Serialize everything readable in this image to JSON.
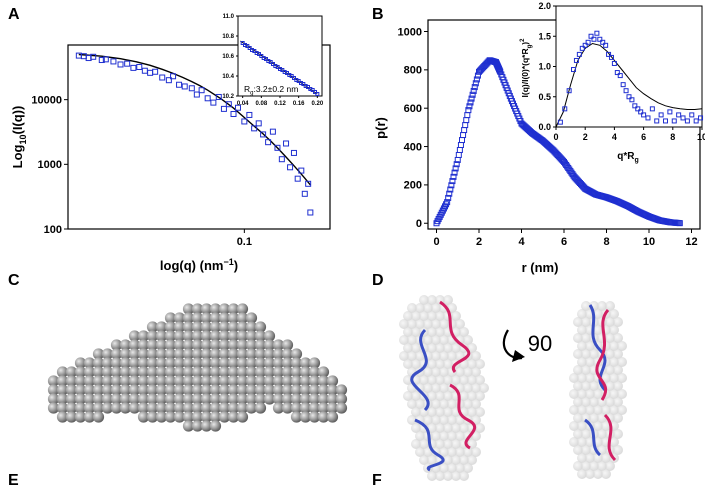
{
  "panel_labels": {
    "a": "A",
    "b": "B",
    "c": "C",
    "d": "D",
    "e": "E",
    "f": "F"
  },
  "panel_d": {
    "rotation_label": "90"
  },
  "colors": {
    "marker": "#1f2fd0",
    "fit": "#000000",
    "sphere": "#8c8c8c",
    "model_blue": "#3a4fc4",
    "model_red": "#d21f63",
    "envelope": "#d9d9d9"
  },
  "chart_data": [
    {
      "type": "scatter",
      "panel": "A",
      "xlabel": "log(q) (nm",
      "xlabel_sup": "−1",
      "xlabel_tail": ")",
      "ylabel": "Log",
      "ylabel_sub": "10",
      "ylabel_tail": "(I(q))",
      "xscale": "log",
      "yscale": "log",
      "xlim": [
        0.018,
        0.23
      ],
      "ylim": [
        100,
        70000
      ],
      "x_ticks": [
        {
          "v": 0.1,
          "label": "0.1"
        }
      ],
      "y_ticks": [
        {
          "v": 100,
          "label": "100"
        },
        {
          "v": 1000,
          "label": "1000"
        },
        {
          "v": 10000,
          "label": "10000"
        }
      ],
      "x": [
        0.02,
        0.021,
        0.022,
        0.023,
        0.025,
        0.026,
        0.028,
        0.03,
        0.032,
        0.034,
        0.036,
        0.038,
        0.04,
        0.042,
        0.045,
        0.048,
        0.05,
        0.053,
        0.056,
        0.06,
        0.063,
        0.066,
        0.07,
        0.074,
        0.078,
        0.082,
        0.086,
        0.09,
        0.094,
        0.1,
        0.105,
        0.11,
        0.115,
        0.12,
        0.126,
        0.132,
        0.138,
        0.144,
        0.15,
        0.156,
        0.162,
        0.168,
        0.174,
        0.18,
        0.186,
        0.19
      ],
      "y": [
        48000,
        47000,
        44000,
        46000,
        41000,
        42000,
        39000,
        35000,
        36000,
        31000,
        32000,
        28000,
        26000,
        27000,
        22000,
        20000,
        23000,
        17000,
        16000,
        15000,
        12000,
        14000,
        10500,
        9000,
        11000,
        7200,
        8500,
        6000,
        7500,
        4600,
        5800,
        3600,
        4300,
        2900,
        2200,
        3200,
        1800,
        1200,
        2100,
        900,
        1500,
        600,
        800,
        350,
        500,
        180
      ],
      "fit_x": [
        0.02,
        0.025,
        0.03,
        0.035,
        0.04,
        0.045,
        0.05,
        0.055,
        0.06,
        0.065,
        0.07,
        0.08,
        0.09,
        0.1,
        0.11,
        0.12,
        0.13,
        0.14,
        0.15,
        0.16,
        0.17,
        0.18,
        0.19
      ],
      "fit_y": [
        50000,
        47000,
        43000,
        38500,
        34000,
        29500,
        25500,
        22000,
        19000,
        16400,
        14000,
        10200,
        7400,
        5300,
        3900,
        2950,
        2250,
        1700,
        1300,
        1000,
        780,
        610,
        480
      ]
    },
    {
      "type": "scatter",
      "panel": "A-inset",
      "annotation": "R",
      "annotation_sub": "g",
      "annotation_tail": ":3.2±0.2 nm",
      "xlim": [
        0.03,
        0.21
      ],
      "ylim": [
        10.2,
        11.0
      ],
      "x_ticks": [
        {
          "v": 0.04,
          "label": "0.04"
        },
        {
          "v": 0.08,
          "label": "0.08"
        },
        {
          "v": 0.12,
          "label": "0.12"
        },
        {
          "v": 0.16,
          "label": "0.16"
        },
        {
          "v": 0.2,
          "label": "0.20"
        }
      ],
      "y_ticks": [
        {
          "v": 10.2,
          "label": "10.2"
        },
        {
          "v": 10.4,
          "label": "10.4"
        },
        {
          "v": 10.6,
          "label": "10.6"
        },
        {
          "v": 10.8,
          "label": "10.8"
        },
        {
          "v": 11.0,
          "label": "11.0"
        }
      ],
      "x": [
        0.04,
        0.045,
        0.05,
        0.055,
        0.06,
        0.065,
        0.07,
        0.075,
        0.08,
        0.085,
        0.09,
        0.095,
        0.1,
        0.105,
        0.11,
        0.115,
        0.12,
        0.125,
        0.13,
        0.135,
        0.14,
        0.145,
        0.15,
        0.155,
        0.16,
        0.165,
        0.17,
        0.175,
        0.18,
        0.185,
        0.19,
        0.195,
        0.2
      ],
      "y": [
        10.73,
        10.71,
        10.7,
        10.68,
        10.66,
        10.65,
        10.63,
        10.62,
        10.6,
        10.58,
        10.57,
        10.55,
        10.54,
        10.52,
        10.5,
        10.49,
        10.47,
        10.46,
        10.44,
        10.43,
        10.41,
        10.4,
        10.38,
        10.36,
        10.35,
        10.33,
        10.32,
        10.3,
        10.29,
        10.27,
        10.26,
        10.24,
        10.22
      ],
      "fit_x": [
        0.035,
        0.2
      ],
      "fit_y": [
        10.75,
        10.22
      ]
    },
    {
      "type": "scatter",
      "panel": "B",
      "xlabel": "r (nm)",
      "ylabel": "p(r)",
      "xlim": [
        -0.4,
        12.4
      ],
      "ylim": [
        -30,
        1060
      ],
      "x_ticks": [
        {
          "v": 0,
          "label": "0"
        },
        {
          "v": 2,
          "label": "2"
        },
        {
          "v": 4,
          "label": "4"
        },
        {
          "v": 6,
          "label": "6"
        },
        {
          "v": 8,
          "label": "8"
        },
        {
          "v": 10,
          "label": "10"
        },
        {
          "v": 12,
          "label": "12"
        }
      ],
      "y_ticks": [
        {
          "v": 0,
          "label": "0"
        },
        {
          "v": 200,
          "label": "200"
        },
        {
          "v": 400,
          "label": "400"
        },
        {
          "v": 600,
          "label": "600"
        },
        {
          "v": 800,
          "label": "800"
        },
        {
          "v": 1000,
          "label": "1000"
        }
      ],
      "profile_r": [
        0,
        0.5,
        1,
        1.5,
        2,
        2.5,
        2.8,
        3,
        3.5,
        4,
        4.5,
        5,
        5.5,
        6,
        6.5,
        7,
        7.5,
        8,
        8.5,
        9,
        9.5,
        10,
        10.5,
        11,
        11.5
      ],
      "profile_p": [
        0,
        110,
        330,
        590,
        790,
        850,
        840,
        790,
        650,
        520,
        470,
        430,
        380,
        320,
        240,
        180,
        150,
        135,
        115,
        90,
        60,
        35,
        15,
        5,
        0
      ]
    },
    {
      "type": "scatter",
      "panel": "B-inset",
      "xlabel": "q*R",
      "xlabel_sub": "g",
      "ylabel": "I(q)/I(0)*(q*R",
      "ylabel_sub": "g",
      "ylabel_tail": ")",
      "ylabel_sup": "2",
      "xlim": [
        0,
        10
      ],
      "ylim": [
        0,
        2.0
      ],
      "x_ticks": [
        {
          "v": 0,
          "label": "0"
        },
        {
          "v": 2,
          "label": "2"
        },
        {
          "v": 4,
          "label": "4"
        },
        {
          "v": 6,
          "label": "6"
        },
        {
          "v": 8,
          "label": "8"
        },
        {
          "v": 10,
          "label": "10"
        }
      ],
      "y_ticks": [
        {
          "v": 0,
          "label": "0.0"
        },
        {
          "v": 0.5,
          "label": "0.5"
        },
        {
          "v": 1.0,
          "label": "1.0"
        },
        {
          "v": 1.5,
          "label": "1.5"
        },
        {
          "v": 2.0,
          "label": "2.0"
        }
      ],
      "x": [
        0.3,
        0.6,
        0.9,
        1.2,
        1.4,
        1.6,
        1.8,
        2.0,
        2.2,
        2.4,
        2.6,
        2.8,
        3.0,
        3.2,
        3.4,
        3.6,
        3.8,
        4.0,
        4.2,
        4.4,
        4.6,
        4.8,
        5.0,
        5.2,
        5.4,
        5.6,
        5.8,
        6.0,
        6.3,
        6.6,
        6.9,
        7.2,
        7.5,
        7.8,
        8.1,
        8.4,
        8.7,
        9.0,
        9.3,
        9.6,
        9.9
      ],
      "y": [
        0.08,
        0.3,
        0.6,
        0.95,
        1.1,
        1.2,
        1.3,
        1.35,
        1.4,
        1.5,
        1.45,
        1.55,
        1.45,
        1.4,
        1.35,
        1.2,
        1.15,
        1.05,
        0.9,
        0.85,
        0.7,
        0.6,
        0.5,
        0.45,
        0.35,
        0.3,
        0.25,
        0.2,
        0.15,
        0.3,
        0.1,
        0.2,
        0.1,
        0.25,
        0.1,
        0.2,
        0.15,
        0.1,
        0.2,
        0.1,
        0.15
      ],
      "fit_x": [
        0,
        0.5,
        1,
        1.5,
        2,
        2.5,
        3,
        3.5,
        4,
        4.5,
        5,
        5.5,
        6,
        6.5,
        7,
        7.5,
        8,
        8.5,
        9,
        9.5,
        10
      ],
      "fit_y": [
        0,
        0.25,
        0.7,
        1.1,
        1.3,
        1.38,
        1.35,
        1.25,
        1.1,
        0.95,
        0.8,
        0.65,
        0.55,
        0.47,
        0.4,
        0.35,
        0.32,
        0.3,
        0.29,
        0.29,
        0.3
      ]
    }
  ]
}
